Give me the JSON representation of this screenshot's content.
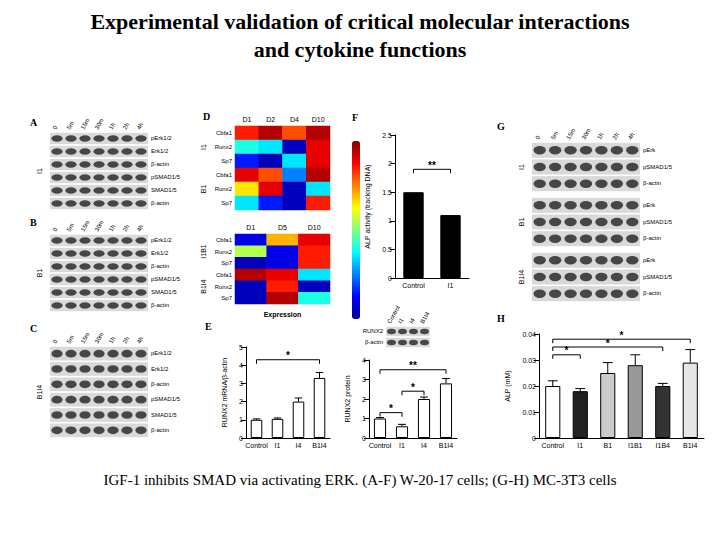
{
  "title": [
    "Experimental validation of critical molecular interactions",
    "and cytokine functions"
  ],
  "caption": "IGF-1 inhibits SMAD via activating ERK. (A-F) W-20-17 cells; (G-H) MC-3T3 cells",
  "blots": [
    {
      "panel": "A",
      "lanes": [
        "0",
        "5m",
        "15m",
        "30m",
        "1h",
        "2h",
        "4h"
      ],
      "groups": [
        {
          "label": "I1",
          "rows": [
            "pErk1/2",
            "Erk1/2",
            "β-actin",
            "pSMAD1/5",
            "SMAD1/5",
            "β-actin"
          ]
        }
      ]
    },
    {
      "panel": "B",
      "lanes": [
        "0",
        "5m",
        "15m",
        "30m",
        "1h",
        "2h",
        "4h"
      ],
      "groups": [
        {
          "label": "B1",
          "rows": [
            "pErk1/2",
            "Erk1/2",
            "β-actin",
            "pSMAD1/5",
            "SMAD1/5",
            "β-actin"
          ]
        }
      ]
    },
    {
      "panel": "C",
      "lanes": [
        "0",
        "5m",
        "15m",
        "30m",
        "1h",
        "2h",
        "4h"
      ],
      "groups": [
        {
          "label": "B1I4",
          "rows": [
            "pErk1/2",
            "Erk1/2",
            "β-actin",
            "pSMAD1/5",
            "SMAD1/5",
            "β-actin"
          ]
        }
      ]
    },
    {
      "panel": "G",
      "lanes": [
        "0",
        "5m",
        "15m",
        "30m",
        "1h",
        "2h",
        "4h"
      ],
      "groups": [
        {
          "label": "I1",
          "rows": [
            "pErk",
            "pSMAD1/5",
            "β-actin"
          ]
        },
        {
          "label": "B1",
          "rows": [
            "pErk",
            "pSMAD1/5",
            "β-actin"
          ]
        },
        {
          "label": "B1I4",
          "rows": [
            "pErk",
            "pSMAD1/5",
            "β-actin"
          ]
        }
      ]
    },
    {
      "lanes": [
        "Control",
        "I1",
        "I4",
        "B1I4"
      ],
      "groups": [
        {
          "rows": [
            "RUNX2",
            "β-actin"
          ]
        }
      ]
    }
  ],
  "chart_data": [
    {
      "type": "heatmap",
      "panel": "D",
      "x": [
        "D1",
        "D2",
        "D4",
        "D10"
      ],
      "groups": [
        {
          "label": "I1",
          "rows": [
            "Cbfa1",
            "Runx2",
            "Sp7"
          ],
          "cells": [
            [
              0.85,
              0.95,
              0.8,
              0.95
            ],
            [
              0.4,
              0.35,
              0.05,
              0.9
            ],
            [
              0.15,
              0.05,
              0.35,
              0.9
            ]
          ]
        },
        {
          "label": "B1",
          "rows": [
            "Cbfa1",
            "Runx2",
            "Sp7"
          ],
          "cells": [
            [
              0.9,
              0.8,
              0.25,
              0.95
            ],
            [
              0.65,
              0.9,
              0.05,
              0.35
            ],
            [
              0.35,
              0.15,
              0.05,
              0.85
            ]
          ]
        }
      ],
      "colorbar_range": [
        0,
        1
      ]
    },
    {
      "type": "heatmap",
      "x": [
        "D1",
        "D5",
        "D10"
      ],
      "xlabel": "Expression",
      "groups": [
        {
          "label": "I1B1",
          "rows": [
            "Cbfa1",
            "Runx2",
            "Sp7"
          ],
          "cells": [
            [
              0.1,
              0.7,
              0.9
            ],
            [
              0.55,
              0.1,
              0.85
            ],
            [
              0.05,
              0.1,
              0.85
            ]
          ]
        },
        {
          "label": "B1I4",
          "rows": [
            "Cbfa1",
            "Runx2",
            "Sp7"
          ],
          "cells": [
            [
              0.95,
              0.9,
              0.35
            ],
            [
              0.05,
              0.85,
              0.05
            ],
            [
              0.05,
              0.95,
              0.4
            ]
          ]
        }
      ],
      "colorbar_range": [
        0,
        1
      ]
    },
    {
      "type": "bar",
      "panel": "F",
      "ylabel": "ALP activity (tracking DNA)",
      "categories": [
        "Control",
        "I1"
      ],
      "values": [
        1.5,
        1.1
      ],
      "color": "#000000",
      "ylim": [
        0,
        2.5
      ],
      "yticks": [
        0,
        0.5,
        1,
        1.5,
        2,
        2.5
      ],
      "grid": false,
      "annotations": [
        {
          "text": "**",
          "from": "Control",
          "to": "I1",
          "y": 1.9
        }
      ]
    },
    {
      "type": "bar",
      "panel": "E",
      "ylabel": "RUNX2 mRNA/β-actin",
      "categories": [
        "Control",
        "I1",
        "I4",
        "B1I4"
      ],
      "values": [
        1.0,
        1.05,
        2.0,
        3.3
      ],
      "errors": [
        0.05,
        0.05,
        0.2,
        0.3
      ],
      "color": "#ffffff",
      "ylim": [
        0,
        5
      ],
      "yticks": [
        0,
        1,
        2,
        3,
        4,
        5
      ],
      "grid": false,
      "annotations": [
        {
          "text": "*",
          "from": "Control",
          "to": "B1I4",
          "y": 4.3
        }
      ]
    },
    {
      "type": "bar",
      "ylabel": "RUNX2 protein",
      "categories": [
        "Control",
        "I1",
        "I4",
        "B1I4"
      ],
      "values": [
        1.0,
        0.6,
        2.0,
        2.8
      ],
      "errors": [
        0.05,
        0.1,
        0.1,
        0.25
      ],
      "color": "#ffffff",
      "ylim": [
        0,
        4
      ],
      "yticks": [
        0,
        1,
        2,
        3,
        4
      ],
      "grid": false,
      "annotations": [
        {
          "text": "*",
          "from": "Control",
          "to": "I1",
          "y": 1.3
        },
        {
          "text": "*",
          "from": "I1",
          "to": "I4",
          "y": 2.4
        },
        {
          "text": "**",
          "from": "Control",
          "to": "B1I4",
          "y": 3.5
        }
      ]
    },
    {
      "type": "bar",
      "panel": "H",
      "ylabel": "ALP (mM)",
      "categories": [
        "Control",
        "I1",
        "B1",
        "I1B1",
        "I1B4",
        "B1I4"
      ],
      "values": [
        0.02,
        0.018,
        0.025,
        0.028,
        0.02,
        0.029
      ],
      "errors": [
        0.002,
        0.001,
        0.004,
        0.004,
        0.001,
        0.005
      ],
      "colors": [
        "#ffffff",
        "#222222",
        "#cccccc",
        "#999999",
        "#333333",
        "#e6e6e6"
      ],
      "ylim": [
        0,
        0.04
      ],
      "yticks": [
        0,
        0.01,
        0.02,
        0.03,
        0.04
      ],
      "grid": false,
      "annotations": [
        {
          "text": "*",
          "from": "Control",
          "to": "I1",
          "y": 0.032
        },
        {
          "text": "*",
          "from": "Control",
          "to": "I1B4",
          "y": 0.035
        },
        {
          "text": "*",
          "from": "Control",
          "to": "B1I4",
          "y": 0.038
        }
      ]
    }
  ]
}
